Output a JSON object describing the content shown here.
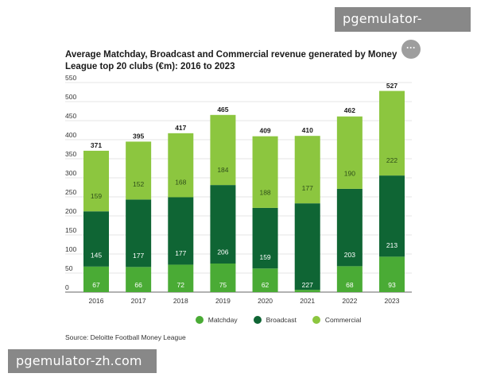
{
  "watermark": {
    "top": "pgemulator-zh.com",
    "bottom": "pgemulator-zh.com"
  },
  "more_button": "···",
  "source": "Source: Deloitte Football Money League",
  "colors": {
    "matchday": "#4aab35",
    "broadcast": "#0f6534",
    "commercial": "#8cc63f",
    "grid": "#e6e6e6"
  },
  "chart_data": {
    "type": "bar",
    "stacked": true,
    "title": "Average Matchday, Broadcast and Commercial revenue generated by Money League top 20 clubs (€m): 2016 to 2023",
    "categories": [
      "2016",
      "2017",
      "2018",
      "2019",
      "2020",
      "2021",
      "2022",
      "2023"
    ],
    "series": [
      {
        "name": "Matchday",
        "values": [
          67,
          66,
          72,
          75,
          62,
          6,
          68,
          93
        ],
        "labels": [
          "67",
          "66",
          "72",
          "75",
          "62",
          "",
          "68",
          "93"
        ]
      },
      {
        "name": "Broadcast",
        "values": [
          145,
          177,
          177,
          206,
          159,
          227,
          203,
          213
        ],
        "labels": [
          "145",
          "177",
          "177",
          "206",
          "159",
          "227",
          "203",
          "213"
        ]
      },
      {
        "name": "Commercial",
        "values": [
          159,
          152,
          168,
          184,
          188,
          177,
          190,
          222
        ],
        "labels": [
          "159",
          "152",
          "168",
          "184",
          "188",
          "177",
          "190",
          "222"
        ]
      }
    ],
    "totals": [
      "371",
      "395",
      "417",
      "465",
      "409",
      "410",
      "462",
      "527"
    ],
    "yticks": [
      "550",
      "500",
      "450",
      "400",
      "350",
      "300",
      "250",
      "200",
      "150",
      "100",
      "50",
      "0"
    ],
    "ylim": [
      0,
      550
    ],
    "legend_position": "bottom",
    "grid": true
  }
}
